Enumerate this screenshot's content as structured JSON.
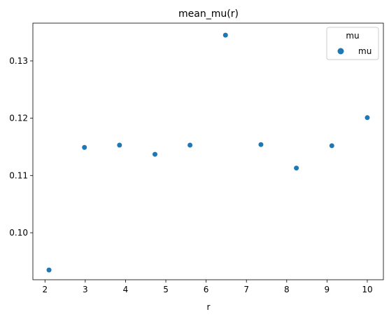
{
  "chart_data": {
    "type": "scatter",
    "title": "mean_mu(r)",
    "xlabel": "r",
    "ylabel": "",
    "xlim": [
      1.7,
      10.4
    ],
    "ylim": [
      0.0918,
      0.1366
    ],
    "xticks": [
      2,
      3,
      4,
      5,
      6,
      7,
      8,
      9,
      10
    ],
    "yticks": [
      0.1,
      0.11,
      0.12,
      0.13
    ],
    "ytick_labels": [
      "0.10",
      "0.11",
      "0.12",
      "0.13"
    ],
    "grid": false,
    "legend": {
      "title": "mu",
      "placement": "top-right",
      "entries": [
        "mu"
      ]
    },
    "series": [
      {
        "name": "mu",
        "color": "#1f77b4",
        "points": [
          {
            "x": 2.1,
            "y": 0.0935
          },
          {
            "x": 2.98,
            "y": 0.1149
          },
          {
            "x": 3.85,
            "y": 0.1153
          },
          {
            "x": 4.73,
            "y": 0.1137
          },
          {
            "x": 5.6,
            "y": 0.1153
          },
          {
            "x": 6.48,
            "y": 0.1345
          },
          {
            "x": 7.36,
            "y": 0.1154
          },
          {
            "x": 8.24,
            "y": 0.1113
          },
          {
            "x": 9.12,
            "y": 0.1152
          },
          {
            "x": 10.0,
            "y": 0.1201
          }
        ]
      }
    ]
  }
}
